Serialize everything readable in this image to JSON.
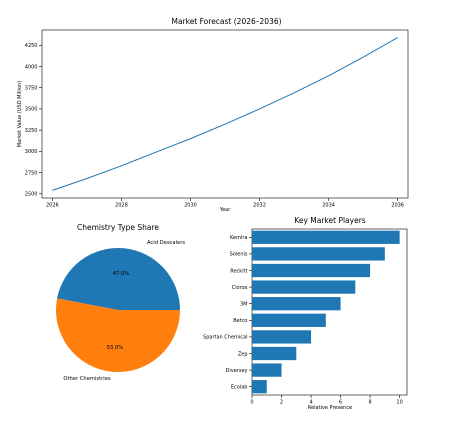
{
  "chart_data": [
    {
      "type": "line",
      "title": "Market Forecast (2026–2036)",
      "xlabel": "Year",
      "ylabel": "Market Value (USD Million)",
      "x": [
        2026,
        2027,
        2028,
        2029,
        2030,
        2031,
        2032,
        2033,
        2034,
        2035,
        2036
      ],
      "series": [
        {
          "values": [
            2540,
            2680,
            2830,
            2990,
            3150,
            3320,
            3500,
            3690,
            3890,
            4110,
            4340
          ]
        }
      ],
      "xticks": [
        2026,
        2028,
        2030,
        2032,
        2034,
        2036
      ],
      "yticks": [
        2500,
        2750,
        3000,
        3250,
        3500,
        3750,
        4000,
        4250
      ],
      "xlim": [
        2025.7,
        2036.3
      ],
      "ylim": [
        2450,
        4430
      ],
      "colors": [
        "#1f77b4"
      ]
    },
    {
      "type": "pie",
      "title": "Chemistry Type Share",
      "categories": [
        "Acid Descalers",
        "Other Chemistries"
      ],
      "values": [
        47.0,
        53.0
      ],
      "value_labels": [
        "47.0%",
        "53.0%"
      ],
      "colors": [
        "#1f77b4",
        "#ff7f0e"
      ]
    },
    {
      "type": "bar",
      "orientation": "horizontal",
      "title": "Key Market Players",
      "xlabel": "Relative Presence",
      "categories": [
        "Kemira",
        "Solenis",
        "Reckitt",
        "Clorox",
        "3M",
        "Betco",
        "Spartan Chemical",
        "Zep",
        "Diversey",
        "Ecolab"
      ],
      "values": [
        10,
        9,
        8,
        7,
        6,
        5,
        4,
        3,
        2,
        1
      ],
      "xticks": [
        0,
        2,
        4,
        6,
        8,
        10
      ],
      "xlim": [
        0,
        10.5
      ],
      "colors": [
        "#1f77b4"
      ]
    }
  ]
}
